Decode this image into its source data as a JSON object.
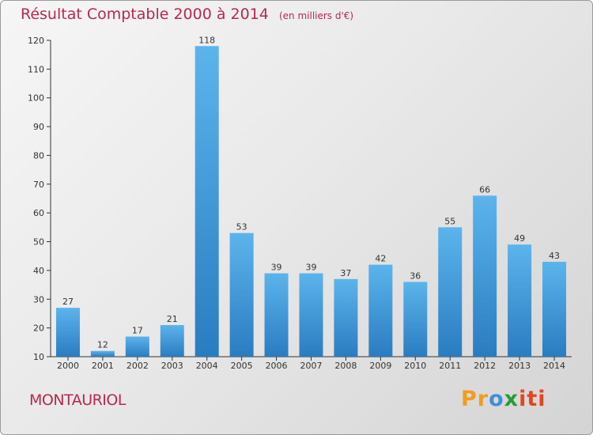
{
  "title": "Résultat Comptable 2000 à 2014",
  "subtitle": "(en milliers d'€)",
  "commune": "MONTAURIOL",
  "logo": {
    "part1": "Pr",
    "part2": "o",
    "part3": "x",
    "part4": "iti"
  },
  "colors": {
    "accent": "#b8284f",
    "bar_top": "#5cb4ec",
    "bar_bottom": "#2a7cc0"
  },
  "chart_data": {
    "type": "bar",
    "title": "Résultat Comptable 2000 à 2014",
    "ylabel": "en milliers d'€",
    "xlabel": "",
    "categories": [
      "2000",
      "2001",
      "2002",
      "2003",
      "2004",
      "2005",
      "2006",
      "2007",
      "2008",
      "2009",
      "2010",
      "2011",
      "2012",
      "2013",
      "2014"
    ],
    "values": [
      27,
      12,
      17,
      21,
      118,
      53,
      39,
      39,
      37,
      42,
      36,
      55,
      66,
      49,
      43
    ],
    "ylim": [
      10,
      120
    ],
    "yticks": [
      10,
      20,
      30,
      40,
      50,
      60,
      70,
      80,
      90,
      100,
      110,
      120
    ],
    "grid": false
  }
}
